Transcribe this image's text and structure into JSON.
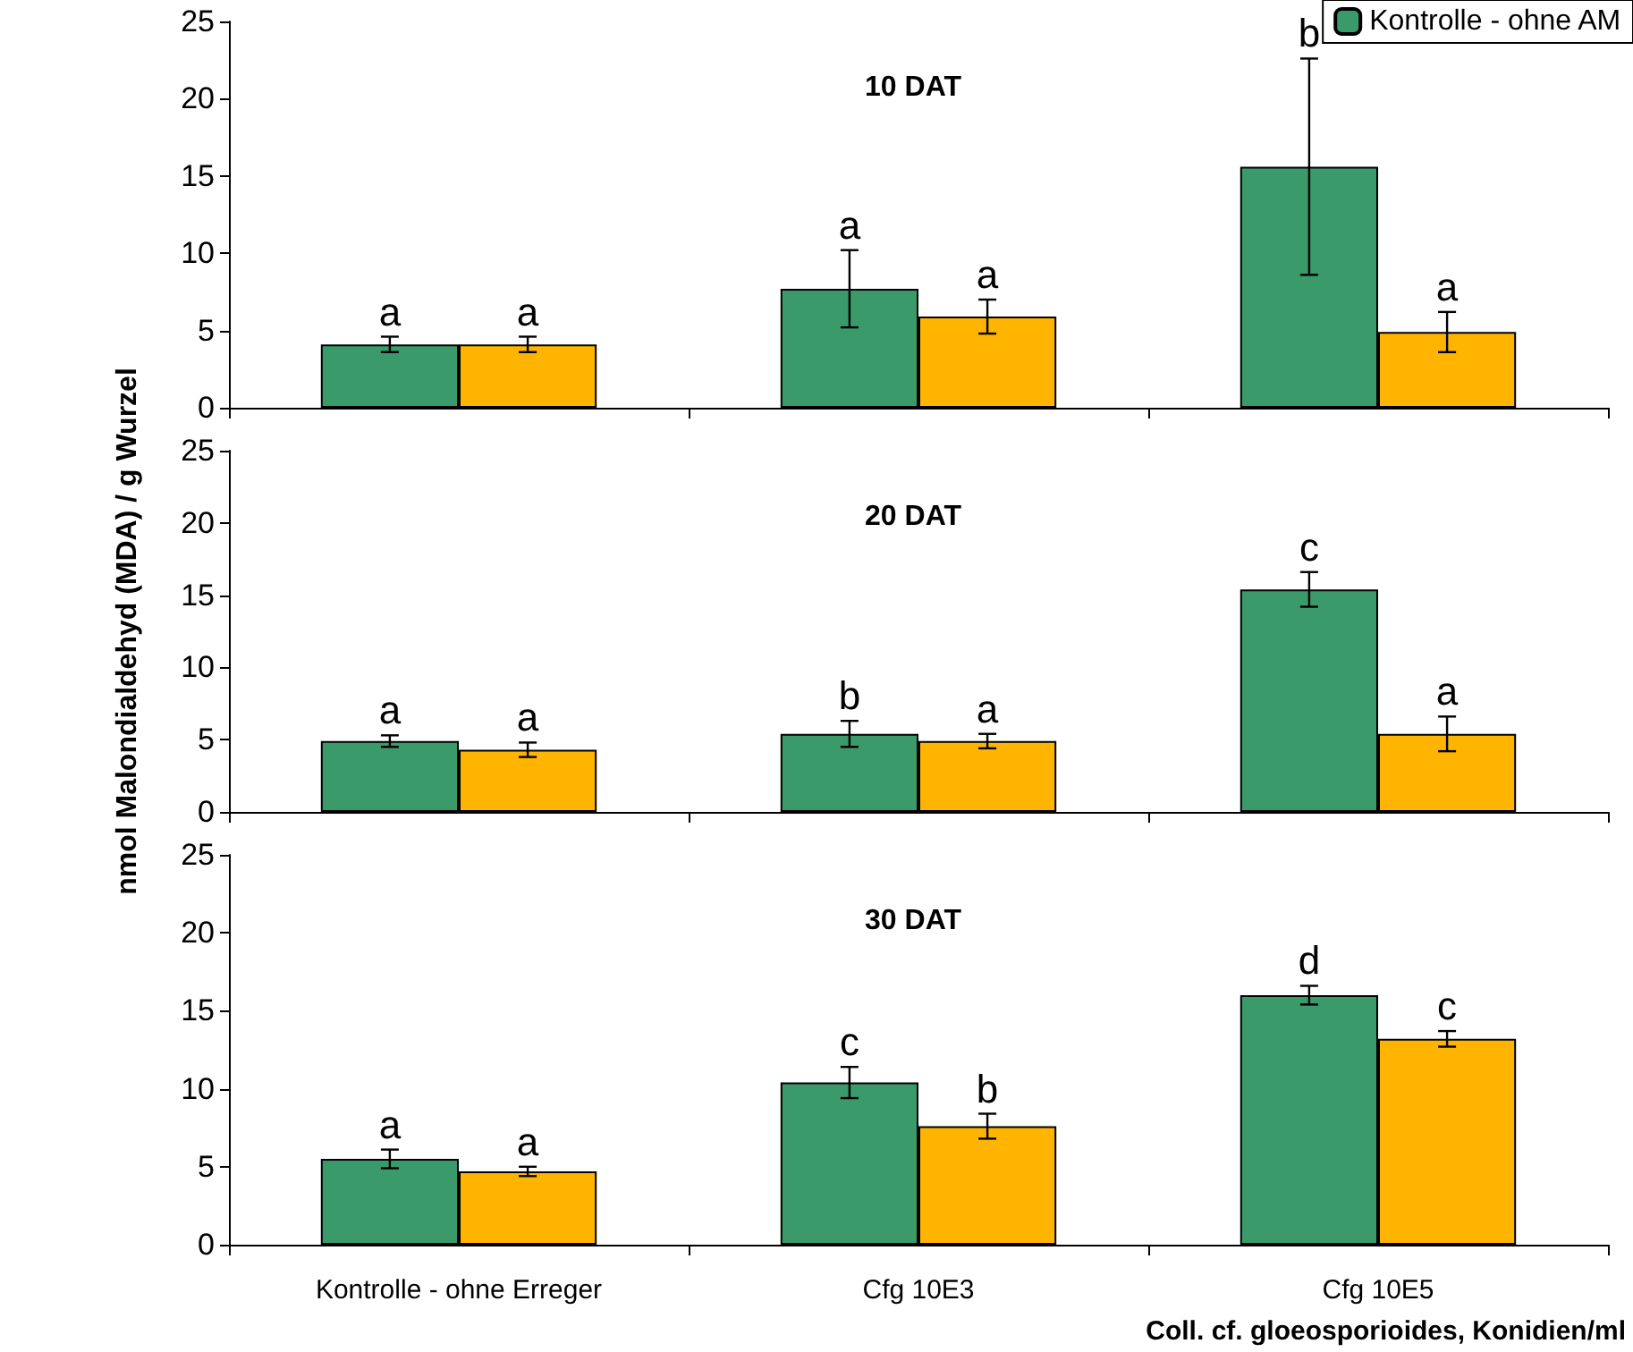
{
  "chart_data": [
    {
      "type": "bar",
      "title": "10 DAT",
      "categories": [
        null,
        null,
        null
      ],
      "ylim": [
        0,
        25
      ],
      "yticks": [
        0,
        5,
        10,
        15,
        20,
        25
      ],
      "tick_labels": "y",
      "legend": "top right",
      "grid": false,
      "series": [
        {
          "name": "Kontrolle - ohne AM",
          "color": "#3a9a6a",
          "values": [
            4.1,
            7.7,
            15.6
          ],
          "errors": [
            0.5,
            2.5,
            7
          ],
          "value_labels": [
            "a",
            "a",
            "b"
          ]
        },
        {
          "color": "#ffb400",
          "values": [
            4.1,
            5.9,
            4.9
          ],
          "errors": [
            0.5,
            1.1,
            1.3
          ],
          "value_labels": [
            "a",
            "a",
            "a"
          ]
        }
      ]
    },
    {
      "type": "bar",
      "title": "20 DAT",
      "ylabel": "nmol Malondialdehyd (MDA) / g Wurzel",
      "categories": [
        null,
        null,
        null
      ],
      "ylim": [
        0,
        25
      ],
      "yticks": [
        0,
        5,
        10,
        15,
        20,
        25
      ],
      "tick_labels": "y",
      "grid": false,
      "series": [
        {
          "color": "#3a9a6a",
          "values": [
            4.9,
            5.4,
            15.4
          ],
          "errors": [
            0.4,
            0.9,
            1.2
          ],
          "value_labels": [
            "a",
            "b",
            "c"
          ]
        },
        {
          "color": "#ffb400",
          "values": [
            4.3,
            4.9,
            5.4
          ],
          "errors": [
            0.5,
            0.5,
            1.2
          ],
          "value_labels": [
            "a",
            "a",
            "a"
          ]
        }
      ]
    },
    {
      "type": "bar",
      "title": "30 DAT",
      "xlabel": "Coll. cf. gloeosporioides, Konidien/ml",
      "categories": [
        "Kontrolle - ohne Erreger",
        "Cfg 10E3",
        "Cfg 10E5"
      ],
      "ylim": [
        0,
        25
      ],
      "yticks": [
        0,
        5,
        10,
        15,
        20,
        25
      ],
      "grid": false,
      "series": [
        {
          "color": "#3a9a6a",
          "values": [
            5.5,
            10.4,
            16.0
          ],
          "errors": [
            0.6,
            1.0,
            0.6
          ],
          "value_labels": [
            "a",
            "c",
            "d"
          ]
        },
        {
          "color": "#ffb400",
          "values": [
            4.7,
            7.6,
            13.2
          ],
          "errors": [
            0.3,
            0.8,
            0.5
          ],
          "value_labels": [
            "a",
            "b",
            "c"
          ]
        }
      ]
    }
  ]
}
